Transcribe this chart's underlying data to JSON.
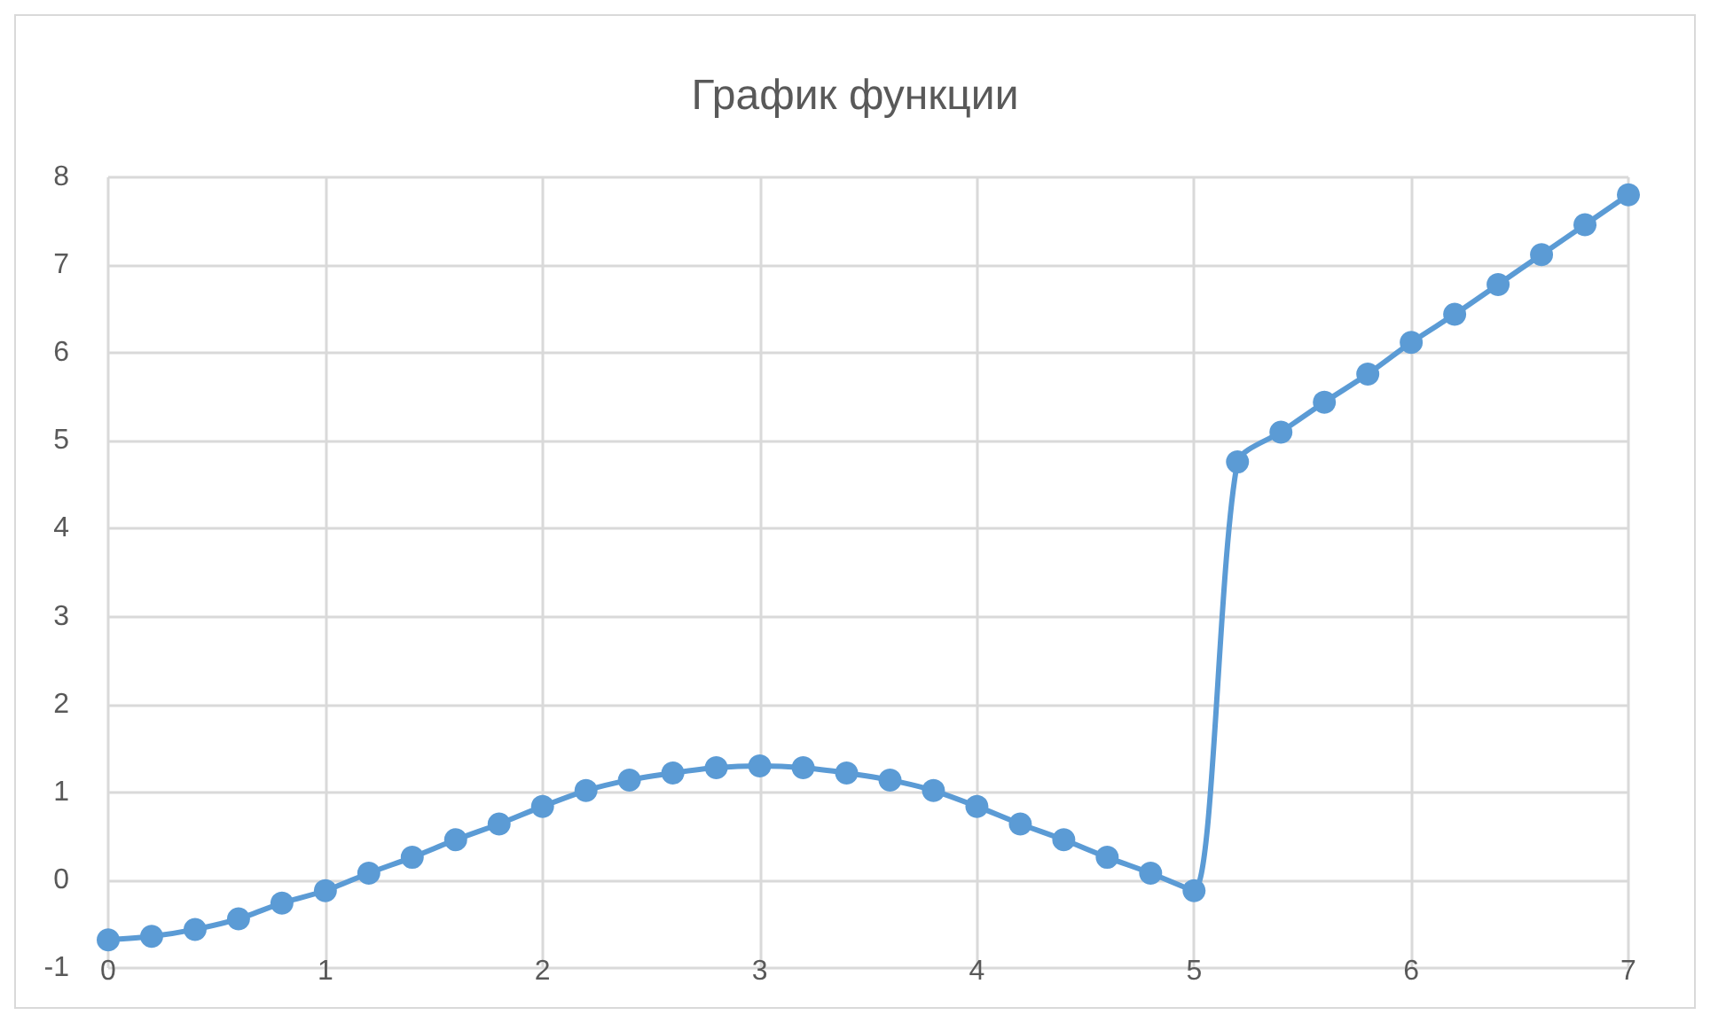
{
  "chart_data": {
    "type": "line",
    "title": "График функции",
    "x": [
      0,
      0.2,
      0.4,
      0.6,
      0.8,
      1,
      1.2,
      1.4,
      1.6,
      1.8,
      2,
      2.2,
      2.4,
      2.6,
      2.8,
      3,
      3.2,
      3.4,
      3.6,
      3.8,
      4,
      4.2,
      4.4,
      4.6,
      4.8,
      5,
      5.2,
      5.4,
      5.6,
      5.8,
      6,
      6.2,
      6.4,
      6.6,
      6.8,
      7
    ],
    "series": [
      {
        "color": "#5b9bd5",
        "values": [
          -0.68,
          -0.64,
          -0.56,
          -0.44,
          -0.26,
          -0.12,
          0.08,
          0.26,
          0.46,
          0.64,
          0.84,
          1.02,
          1.14,
          1.22,
          1.28,
          1.3,
          1.28,
          1.22,
          1.14,
          1.02,
          0.84,
          0.64,
          0.46,
          0.26,
          0.08,
          -0.12,
          4.76,
          5.1,
          5.44,
          5.76,
          6.12,
          6.44,
          6.78,
          7.12,
          7.46,
          7.8
        ]
      }
    ],
    "xlim": [
      0,
      7
    ],
    "xticks": [
      0,
      1,
      2,
      3,
      4,
      5,
      6,
      7
    ],
    "ylim": [
      -1,
      8
    ],
    "yticks": [
      -1,
      0,
      1,
      2,
      3,
      4,
      5,
      6,
      7,
      8
    ],
    "grid": true,
    "marker": "circle",
    "line_style": "solid"
  }
}
